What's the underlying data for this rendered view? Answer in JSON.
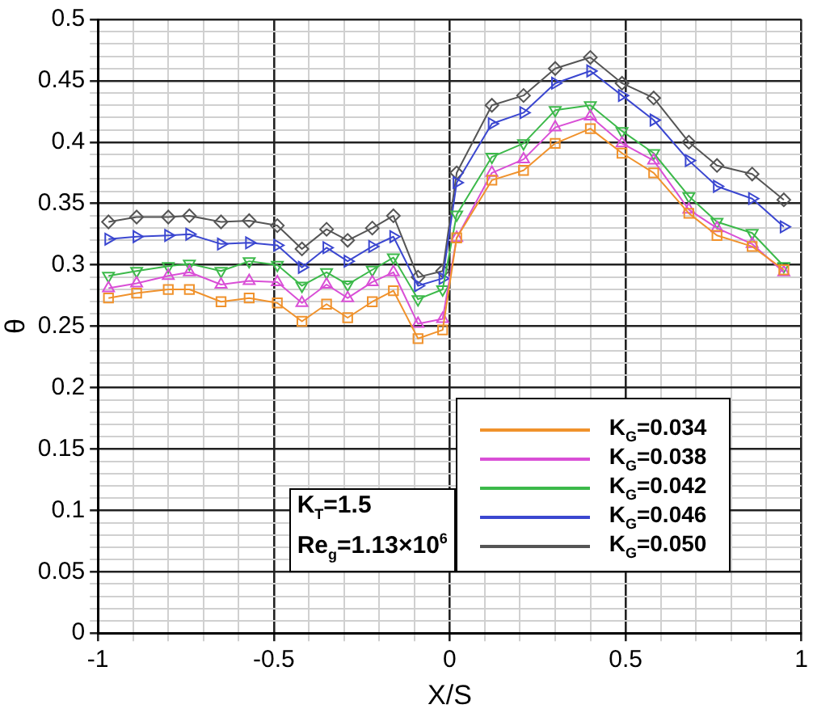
{
  "chart_data": {
    "type": "line",
    "xlabel": "X/S",
    "ylabel": "θ",
    "xlim": [
      -1,
      1
    ],
    "ylim": [
      0,
      0.5
    ],
    "xticks": [
      -1,
      {
        "value": -0.9,
        "label": null
      },
      {
        "value": -0.8,
        "label": null
      },
      {
        "value": -0.7,
        "label": null
      },
      {
        "value": -0.6,
        "label": null
      },
      -0.5,
      {
        "value": -0.4,
        "label": null
      },
      {
        "value": -0.3,
        "label": null
      },
      {
        "value": -0.2,
        "label": null
      },
      {
        "value": -0.1,
        "label": null
      },
      0,
      {
        "value": 0.1,
        "label": null
      },
      {
        "value": 0.2,
        "label": null
      },
      {
        "value": 0.3,
        "label": null
      },
      {
        "value": 0.4,
        "label": null
      },
      0.5,
      {
        "value": 0.6,
        "label": null
      },
      {
        "value": 0.7,
        "label": null
      },
      {
        "value": 0.8,
        "label": null
      },
      {
        "value": 0.9,
        "label": null
      },
      1
    ],
    "yticks": [
      0,
      {
        "value": 0.01,
        "label": null
      },
      {
        "value": 0.02,
        "label": null
      },
      {
        "value": 0.03,
        "label": null
      },
      {
        "value": 0.04,
        "label": null
      },
      0.05,
      {
        "value": 0.06,
        "label": null
      },
      {
        "value": 0.07,
        "label": null
      },
      {
        "value": 0.08,
        "label": null
      },
      {
        "value": 0.09,
        "label": null
      },
      0.1,
      {
        "value": 0.11,
        "label": null
      },
      {
        "value": 0.12,
        "label": null
      },
      {
        "value": 0.13,
        "label": null
      },
      {
        "value": 0.14,
        "label": null
      },
      0.15,
      {
        "value": 0.16,
        "label": null
      },
      {
        "value": 0.17,
        "label": null
      },
      {
        "value": 0.18,
        "label": null
      },
      {
        "value": 0.19,
        "label": null
      },
      0.2,
      {
        "value": 0.21,
        "label": null
      },
      {
        "value": 0.22,
        "label": null
      },
      {
        "value": 0.23,
        "label": null
      },
      {
        "value": 0.24,
        "label": null
      },
      0.25,
      {
        "value": 0.26,
        "label": null
      },
      {
        "value": 0.27,
        "label": null
      },
      {
        "value": 0.28,
        "label": null
      },
      {
        "value": 0.29,
        "label": null
      },
      0.3,
      {
        "value": 0.31,
        "label": null
      },
      {
        "value": 0.32,
        "label": null
      },
      {
        "value": 0.33,
        "label": null
      },
      {
        "value": 0.34,
        "label": null
      },
      0.35,
      {
        "value": 0.36,
        "label": null
      },
      {
        "value": 0.37,
        "label": null
      },
      {
        "value": 0.38,
        "label": null
      },
      {
        "value": 0.39,
        "label": null
      },
      0.4,
      {
        "value": 0.41,
        "label": null
      },
      {
        "value": 0.42,
        "label": null
      },
      {
        "value": 0.43,
        "label": null
      },
      {
        "value": 0.44,
        "label": null
      },
      0.45,
      {
        "value": 0.46,
        "label": null
      },
      {
        "value": 0.47,
        "label": null
      },
      {
        "value": 0.48,
        "label": null
      },
      {
        "value": 0.49,
        "label": null
      },
      0.5
    ],
    "x": [
      -0.97,
      -0.89,
      -0.8,
      -0.74,
      -0.65,
      -0.57,
      -0.49,
      -0.42,
      -0.35,
      -0.29,
      -0.22,
      -0.16,
      -0.09,
      -0.02,
      0.02,
      0.12,
      0.21,
      0.3,
      0.4,
      0.49,
      0.58,
      0.68,
      0.76,
      0.86,
      0.95
    ],
    "grid": true,
    "legend": "bottom right",
    "line_style": "solid",
    "annotations": [
      "K$_{T}$=1.5\nRe$_{g}$=1.13×10$^{6}$"
    ],
    "series": [
      {
        "name": "K$_{G}$=0.034",
        "color": "#f0922c",
        "marker": "square",
        "values": [
          0.273,
          0.277,
          0.28,
          0.28,
          0.27,
          0.273,
          0.269,
          0.254,
          0.268,
          0.257,
          0.27,
          0.279,
          0.24,
          0.247,
          0.322,
          0.369,
          0.377,
          0.399,
          0.411,
          0.391,
          0.375,
          0.342,
          0.324,
          0.315,
          0.296
        ]
      },
      {
        "name": "K$_{G}$=0.038",
        "color": "#d94fd6",
        "marker": "triangle",
        "values": [
          0.281,
          0.285,
          0.291,
          0.294,
          0.284,
          0.287,
          0.286,
          0.269,
          0.284,
          0.273,
          0.286,
          0.294,
          0.252,
          0.256,
          0.322,
          0.375,
          0.386,
          0.412,
          0.421,
          0.399,
          0.385,
          0.345,
          0.33,
          0.317,
          0.294
        ]
      },
      {
        "name": "K$_{G}$=0.042",
        "color": "#3cb94a",
        "marker": "triangle-down",
        "values": [
          0.291,
          0.295,
          0.299,
          0.301,
          0.295,
          0.303,
          0.3,
          0.283,
          0.294,
          0.284,
          0.296,
          0.306,
          0.272,
          0.28,
          0.341,
          0.388,
          0.399,
          0.426,
          0.43,
          0.409,
          0.391,
          0.356,
          0.335,
          0.326,
          0.299
        ]
      },
      {
        "name": "K$_{G}$=0.046",
        "color": "#3b47d0",
        "marker": "triangle-right",
        "values": [
          0.321,
          0.323,
          0.324,
          0.325,
          0.317,
          0.318,
          0.316,
          0.298,
          0.314,
          0.303,
          0.315,
          0.323,
          0.283,
          0.289,
          0.367,
          0.415,
          0.424,
          0.448,
          0.458,
          0.438,
          0.418,
          0.385,
          0.364,
          0.354,
          0.331
        ]
      },
      {
        "name": "K$_{G}$=0.050",
        "color": "#555555",
        "marker": "diamond",
        "values": [
          0.335,
          0.339,
          0.339,
          0.34,
          0.335,
          0.336,
          0.332,
          0.313,
          0.329,
          0.32,
          0.33,
          0.34,
          0.29,
          0.295,
          0.375,
          0.43,
          0.438,
          0.46,
          0.469,
          0.448,
          0.436,
          0.4,
          0.381,
          0.374,
          0.353
        ]
      }
    ]
  }
}
